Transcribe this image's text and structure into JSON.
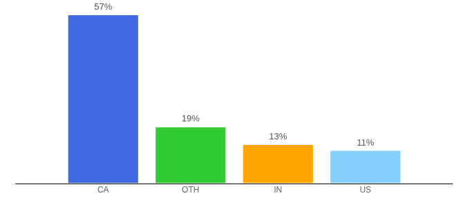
{
  "chart_data": {
    "type": "bar",
    "categories": [
      "CA",
      "OTH",
      "IN",
      "US"
    ],
    "values": [
      57,
      19,
      13,
      11
    ],
    "value_labels": [
      "57%",
      "19%",
      "13%",
      "11%"
    ],
    "colors": [
      "#4169e1",
      "#32cd32",
      "#ffa500",
      "#87cefa"
    ],
    "ylim": [
      0,
      57
    ],
    "grid": false,
    "data_labels": true,
    "tick_labels": "x"
  }
}
